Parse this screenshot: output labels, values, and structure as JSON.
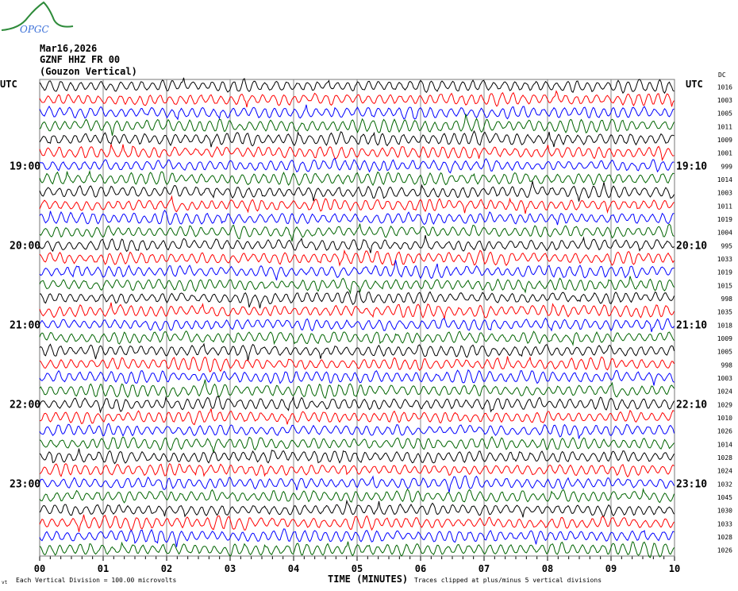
{
  "logo": {
    "text": "OPGC"
  },
  "header": {
    "date": "Mar16,2026",
    "channel": "GZNF HHZ FR 00",
    "station": "(Gouzon Vertical)"
  },
  "footer": {
    "scale_note": "Each Vertical Division =  100.00 microvolts",
    "xlabel": "TIME (MINUTES)",
    "clip_note": "Traces clipped at plus/minus 5 vertical divisions",
    "corner_mark": "vt"
  },
  "chart_data": {
    "type": "line",
    "title": "",
    "xlabel": "TIME (MINUTES)",
    "xlim": [
      0,
      10
    ],
    "x_ticks": [
      "00",
      "01",
      "02",
      "03",
      "04",
      "05",
      "06",
      "07",
      "08",
      "09",
      "10"
    ],
    "left_axis_title": "UTC",
    "right_axis_title": "UTC",
    "dc_title": "DC",
    "left_labels": [
      {
        "row": 6,
        "text": "19:00"
      },
      {
        "row": 12,
        "text": "20:00"
      },
      {
        "row": 18,
        "text": "21:00"
      },
      {
        "row": 24,
        "text": "22:00"
      },
      {
        "row": 30,
        "text": "23:00"
      }
    ],
    "right_labels": [
      {
        "row": 6,
        "text": "19:10"
      },
      {
        "row": 12,
        "text": "20:10"
      },
      {
        "row": 18,
        "text": "21:10"
      },
      {
        "row": 24,
        "text": "22:10"
      },
      {
        "row": 30,
        "text": "23:10"
      }
    ],
    "dc_offsets": [
      1016,
      1003,
      1005,
      1011,
      1009,
      1001,
      999,
      1014,
      1003,
      1011,
      1019,
      1004,
      995,
      1033,
      1019,
      1015,
      998,
      1035,
      1018,
      1009,
      1005,
      998,
      1003,
      1024,
      1029,
      1010,
      1026,
      1014,
      1028,
      1024,
      1032,
      1045,
      1030,
      1033,
      1028,
      1026
    ],
    "trace_colors": [
      "#000000",
      "#ff0000",
      "#0000ff",
      "#006400"
    ],
    "grid": true
  }
}
